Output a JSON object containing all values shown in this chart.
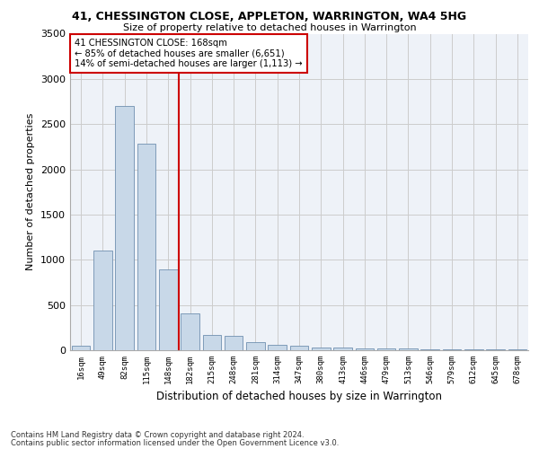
{
  "title1": "41, CHESSINGTON CLOSE, APPLETON, WARRINGTON, WA4 5HG",
  "title2": "Size of property relative to detached houses in Warrington",
  "xlabel": "Distribution of detached houses by size in Warrington",
  "ylabel": "Number of detached properties",
  "categories": [
    "16sqm",
    "49sqm",
    "82sqm",
    "115sqm",
    "148sqm",
    "182sqm",
    "215sqm",
    "248sqm",
    "281sqm",
    "314sqm",
    "347sqm",
    "380sqm",
    "413sqm",
    "446sqm",
    "479sqm",
    "513sqm",
    "546sqm",
    "579sqm",
    "612sqm",
    "645sqm",
    "678sqm"
  ],
  "values": [
    50,
    1100,
    2700,
    2280,
    890,
    410,
    170,
    155,
    90,
    55,
    45,
    30,
    30,
    20,
    20,
    15,
    10,
    10,
    5,
    5,
    5
  ],
  "bar_color": "#c8d8e8",
  "bar_edge_color": "#7090b0",
  "grid_color": "#cccccc",
  "bg_color": "#eef2f8",
  "vline_x": 4.5,
  "vline_color": "#cc0000",
  "annotation_line1": "41 CHESSINGTON CLOSE: 168sqm",
  "annotation_line2": "← 85% of detached houses are smaller (6,651)",
  "annotation_line3": "14% of semi-detached houses are larger (1,113) →",
  "annotation_box_color": "#cc0000",
  "ylim": [
    0,
    3500
  ],
  "yticks": [
    0,
    500,
    1000,
    1500,
    2000,
    2500,
    3000,
    3500
  ],
  "footnote1": "Contains HM Land Registry data © Crown copyright and database right 2024.",
  "footnote2": "Contains public sector information licensed under the Open Government Licence v3.0."
}
